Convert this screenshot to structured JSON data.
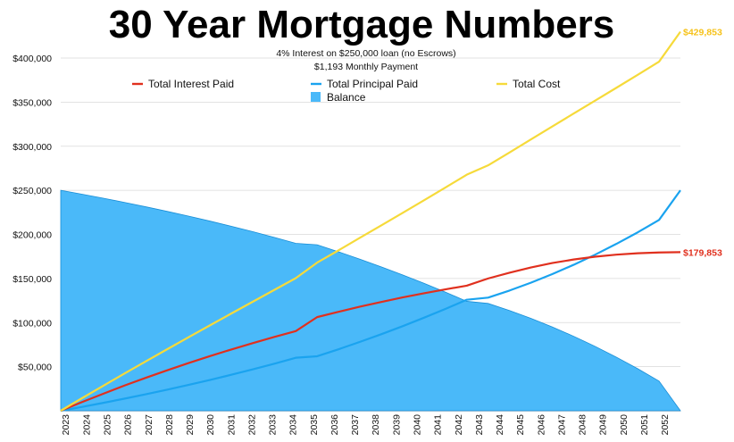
{
  "chart_data": {
    "type": "line",
    "title": "30 Year Mortgage Numbers",
    "subtitle_lines": [
      "4% Interest on $250,000 loan (no Escrows)",
      "$1,193 Monthly Payment"
    ],
    "xlabel": "",
    "ylabel": "",
    "x": [
      "2023",
      "2024",
      "2025",
      "2026",
      "2027",
      "2028",
      "2029",
      "2030",
      "2031",
      "2032",
      "2033",
      "2034",
      "2035",
      "2036",
      "2037",
      "2038",
      "2039",
      "2040",
      "2041",
      "2042",
      "2043",
      "2044",
      "2045",
      "2046",
      "2047",
      "2048",
      "2049",
      "2050",
      "2051",
      "2052"
    ],
    "ylim": [
      0,
      400000
    ],
    "yticks": [
      "$50,000",
      "$100,000",
      "$150,000",
      "$200,000",
      "$250,000",
      "$300,000",
      "$350,000",
      "$400,000"
    ],
    "ytick_values": [
      50000,
      100000,
      150000,
      200000,
      250000,
      300000,
      350000,
      400000
    ],
    "series": [
      {
        "name": "Total Interest Paid",
        "color": "#e0301e",
        "kind": "line",
        "values": [
          0,
          9900,
          19400,
          28700,
          37500,
          46000,
          54200,
          62100,
          69600,
          76800,
          83700,
          90300,
          106200,
          112200,
          118000,
          123400,
          128500,
          133200,
          137700,
          141800,
          150000,
          156500,
          162500,
          167500,
          171500,
          174700,
          177000,
          178600,
          179500,
          179853
        ]
      },
      {
        "name": "Total Principal Paid",
        "color": "#1aa3ef",
        "kind": "line",
        "values": [
          0,
          4400,
          9000,
          13800,
          18800,
          24000,
          29400,
          35000,
          40900,
          47000,
          53400,
          60100,
          61800,
          69700,
          78100,
          86800,
          95900,
          105500,
          115400,
          125900,
          128300,
          136300,
          145200,
          154900,
          165500,
          176900,
          189200,
          202300,
          216400,
          250000
        ]
      },
      {
        "name": "Total Cost",
        "color": "#f6da3a",
        "kind": "line",
        "values": [
          0,
          14300,
          28400,
          42500,
          56300,
          70000,
          83600,
          97100,
          110500,
          123800,
          137100,
          150400,
          168000,
          181900,
          196100,
          210200,
          224400,
          238700,
          253100,
          267700,
          278300,
          292800,
          307700,
          322400,
          337000,
          351600,
          366200,
          380900,
          395900,
          429853
        ]
      },
      {
        "name": "Balance",
        "color": "#4ab9f9",
        "kind": "area",
        "values": [
          250000,
          245600,
          241000,
          236200,
          231200,
          226000,
          220600,
          215000,
          209100,
          203000,
          196600,
          189900,
          188200,
          180300,
          171900,
          163200,
          154100,
          144500,
          134600,
          124100,
          121700,
          113700,
          104800,
          95100,
          84500,
          73100,
          60800,
          47700,
          33600,
          0
        ]
      }
    ],
    "end_labels": [
      {
        "text": "$429,853",
        "color": "#f6c21a"
      },
      {
        "text": "$179,853",
        "color": "#e0301e"
      }
    ],
    "grid": true,
    "legend_position": "top"
  }
}
